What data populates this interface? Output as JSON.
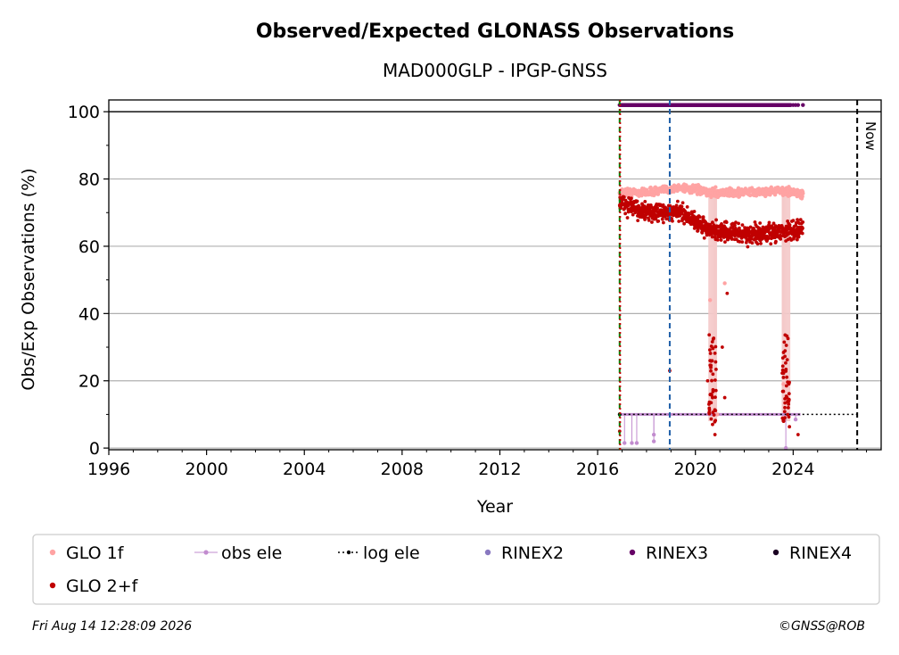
{
  "chart_data": {
    "type": "scatter",
    "title": "Observed/Expected GLONASS Observations",
    "subtitle": "MAD000GLP - IPGP-GNSS",
    "xlabel": "Year",
    "ylabel": "Obs/Exp Observations (%)",
    "xlim": [
      1996,
      2027.6
    ],
    "ylim": [
      -0.5,
      103.5
    ],
    "x_ticks": [
      1996,
      2000,
      2004,
      2008,
      2012,
      2016,
      2020,
      2024
    ],
    "y_ticks": [
      0,
      20,
      40,
      60,
      80,
      100
    ],
    "grid": "horizontal",
    "hline": 100,
    "vlines": [
      {
        "x": 2016.9,
        "color": "#008000",
        "style": "dashed"
      },
      {
        "x": 2016.92,
        "color": "#c00000",
        "style": "dotted"
      },
      {
        "x": 2018.95,
        "color": "#1f5fa8",
        "style": "dashed"
      },
      {
        "x": 2026.62,
        "color": "#000000",
        "style": "dashed",
        "label": "Now"
      }
    ],
    "series": [
      {
        "name": "GLO 1f",
        "color": "#ffa3a3",
        "x_range": [
          2016.9,
          2024.4
        ],
        "trend": [
          [
            2016.9,
            76
          ],
          [
            2018,
            76
          ],
          [
            2019.5,
            77.5
          ],
          [
            2020.5,
            76
          ],
          [
            2022,
            76
          ],
          [
            2023.5,
            76.5
          ],
          [
            2024.4,
            75.5
          ]
        ],
        "drops": [
          [
            2020.6,
            44
          ],
          [
            2020.7,
            30
          ],
          [
            2020.9,
            10
          ],
          [
            2021.2,
            49
          ],
          [
            2023.6,
            19
          ],
          [
            2023.8,
            14
          ]
        ]
      },
      {
        "name": "GLO 2+f",
        "color": "#c00000",
        "x_range": [
          2016.9,
          2024.4
        ],
        "trend": [
          [
            2016.9,
            73
          ],
          [
            2018,
            70
          ],
          [
            2019.5,
            70
          ],
          [
            2020.5,
            65
          ],
          [
            2021.5,
            64
          ],
          [
            2022.5,
            63.5
          ],
          [
            2023.5,
            64.5
          ],
          [
            2024.4,
            65
          ]
        ],
        "drops": [
          [
            2016.9,
            5
          ],
          [
            2018.95,
            23
          ],
          [
            2020.5,
            20
          ],
          [
            2020.6,
            26
          ],
          [
            2020.7,
            15
          ],
          [
            2020.8,
            4
          ],
          [
            2021.1,
            30
          ],
          [
            2021.2,
            15
          ],
          [
            2021.3,
            46
          ],
          [
            2023.6,
            21
          ],
          [
            2023.8,
            12
          ],
          [
            2024.2,
            4
          ]
        ]
      },
      {
        "name": "obs ele",
        "color": "#c28ccf",
        "value": 10,
        "x_range": [
          2016.9,
          2024.3
        ],
        "drops": [
          [
            2017.1,
            1.5
          ],
          [
            2017.4,
            1.5
          ],
          [
            2017.6,
            1.5
          ],
          [
            2018.3,
            4
          ],
          [
            2018.3,
            2
          ],
          [
            2023.7,
            0
          ],
          [
            2024.1,
            8.5
          ]
        ]
      },
      {
        "name": "log ele",
        "color": "#000000",
        "value": 10,
        "x_range": [
          2016.9,
          2026.6
        ]
      },
      {
        "name": "RINEX2",
        "color": "#8878c0"
      },
      {
        "name": "RINEX3",
        "color": "#660066",
        "value": 102,
        "x_range": [
          2016.9,
          2024.4
        ]
      },
      {
        "name": "RINEX4",
        "color": "#1a0022"
      }
    ],
    "legend_position": "bottom"
  },
  "footer": {
    "timestamp": "Fri Aug 14 12:28:09 2026",
    "credit": "©GNSS@ROB"
  }
}
